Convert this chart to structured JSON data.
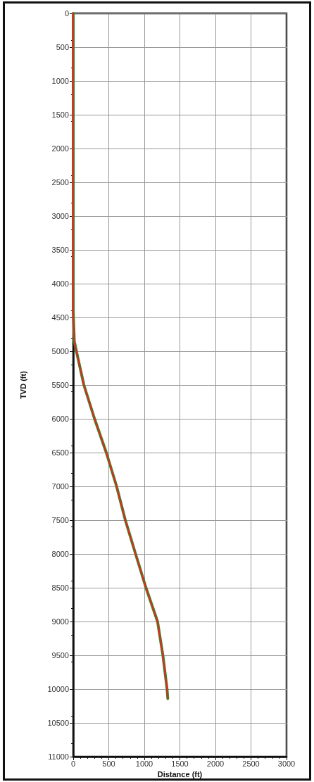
{
  "chart_data": {
    "type": "line",
    "xlabel": "Distance (ft)",
    "ylabel": "TVD (ft)",
    "xlim": [
      0,
      3000
    ],
    "xticks": [
      0,
      500,
      1000,
      1500,
      2000,
      2500,
      3000
    ],
    "ylim": [
      11000,
      0
    ],
    "yticks": [
      0,
      500,
      1000,
      1500,
      2000,
      2500,
      3000,
      3500,
      4000,
      4500,
      5000,
      5500,
      6000,
      6500,
      7000,
      7500,
      8000,
      8500,
      9000,
      9500,
      10000,
      10500,
      11000
    ],
    "grid": true,
    "marker": "none",
    "line_style": "solid",
    "series": [
      {
        "color": "#1a9a2a",
        "x": [
          0,
          0,
          15,
          45,
          150,
          300,
          465,
          610,
          733,
          877,
          1023,
          1186,
          1261,
          1320,
          1330
        ],
        "values": [
          0,
          4400,
          4850,
          5000,
          5500,
          6000,
          6500,
          7000,
          7500,
          8000,
          8500,
          9000,
          9500,
          10000,
          10140
        ]
      },
      {
        "color": "#ee2222",
        "x": [
          0,
          0,
          15,
          45,
          150,
          300,
          465,
          610,
          733,
          877,
          1023,
          1186,
          1261,
          1320,
          1330
        ],
        "values": [
          0,
          4400,
          4850,
          5000,
          5500,
          6000,
          6500,
          7000,
          7500,
          8000,
          8500,
          9000,
          9500,
          10000,
          10140
        ]
      }
    ]
  }
}
